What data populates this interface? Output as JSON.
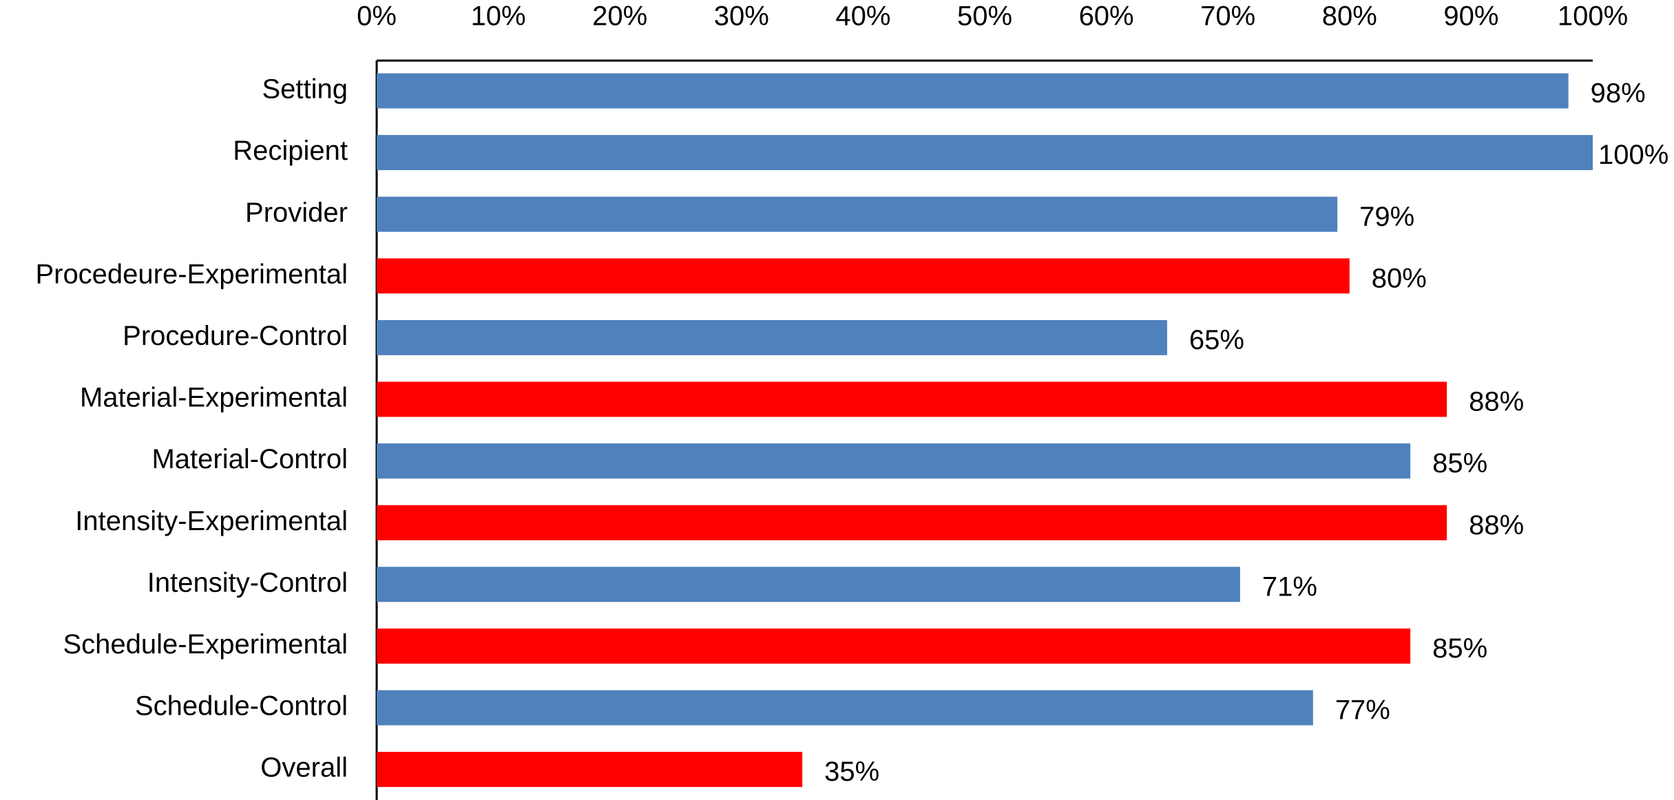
{
  "chart_data": {
    "type": "bar",
    "orientation": "horizontal",
    "categories": [
      "Setting",
      "Recipient",
      "Provider",
      "Procedeure-Experimental",
      "Procedure-Control",
      "Material-Experimental",
      "Material-Control",
      "Intensity-Experimental",
      "Intensity-Control",
      "Schedule-Experimental",
      "Schedule-Control",
      "Overall"
    ],
    "values": [
      98,
      100,
      79,
      80,
      65,
      88,
      85,
      88,
      71,
      85,
      77,
      35
    ],
    "value_labels": [
      "98%",
      "100%",
      "79%",
      "80%",
      "65%",
      "88%",
      "85%",
      "88%",
      "71%",
      "85%",
      "77%",
      "35%"
    ],
    "colors": [
      "#4f81bd",
      "#4f81bd",
      "#4f81bd",
      "#ff0000",
      "#4f81bd",
      "#ff0000",
      "#4f81bd",
      "#ff0000",
      "#4f81bd",
      "#ff0000",
      "#4f81bd",
      "#ff0000"
    ],
    "xlim": [
      0,
      100
    ],
    "xticks": [
      {
        "value": 0,
        "label": "0%"
      },
      {
        "value": 10,
        "label": "10%"
      },
      {
        "value": 20,
        "label": "20%"
      },
      {
        "value": 30,
        "label": "30%"
      },
      {
        "value": 40,
        "label": "40%"
      },
      {
        "value": 50,
        "label": "50%"
      },
      {
        "value": 60,
        "label": "60%"
      },
      {
        "value": 70,
        "label": "70%"
      },
      {
        "value": 80,
        "label": "80%"
      },
      {
        "value": 90,
        "label": "90%"
      },
      {
        "value": 100,
        "label": "100%"
      }
    ],
    "grid": false
  }
}
